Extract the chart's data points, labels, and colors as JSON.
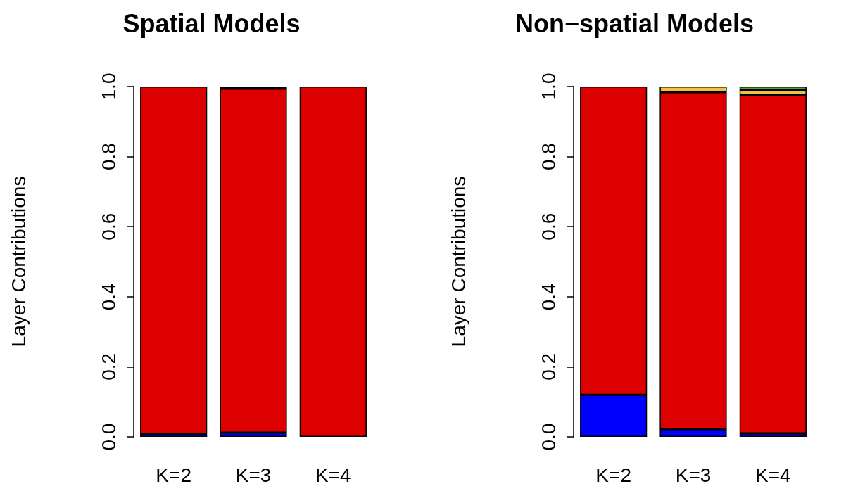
{
  "chart_data": [
    {
      "type": "bar",
      "title": "Spatial Models",
      "ylabel": "Layer Contributions",
      "categories": [
        "K=2",
        "K=3",
        "K=4"
      ],
      "stacked": true,
      "ylim": [
        0,
        1
      ],
      "yticks": [
        {
          "value": 0,
          "label": "0.0"
        },
        {
          "value": 0.2,
          "label": "0.2"
        },
        {
          "value": 0.4,
          "label": "0.4"
        },
        {
          "value": 0.6,
          "label": "0.6"
        },
        {
          "value": 0.8,
          "label": "0.8"
        },
        {
          "value": 1,
          "label": "1.0"
        }
      ],
      "series": [
        {
          "color": "#0000ff",
          "values": [
            0.008,
            0.012,
            null
          ]
        },
        {
          "color": "#dd0000",
          "values": [
            0.992,
            0.982,
            1
          ]
        },
        {
          "color": "#f0c040",
          "values": [
            null,
            0.006,
            null
          ]
        }
      ]
    },
    {
      "type": "bar",
      "title": "Non−spatial Models",
      "ylabel": "Layer Contributions",
      "categories": [
        "K=2",
        "K=3",
        "K=4"
      ],
      "stacked": true,
      "ylim": [
        0,
        1
      ],
      "yticks": [
        {
          "value": 0,
          "label": "0.0"
        },
        {
          "value": 0.2,
          "label": "0.2"
        },
        {
          "value": 0.4,
          "label": "0.4"
        },
        {
          "value": 0.6,
          "label": "0.6"
        },
        {
          "value": 0.8,
          "label": "0.8"
        },
        {
          "value": 1,
          "label": "1.0"
        }
      ],
      "series": [
        {
          "color": "#0000ff",
          "values": [
            0.12,
            0.022,
            0.01
          ]
        },
        {
          "color": "#dd0000",
          "values": [
            0.88,
            0.962,
            0.966
          ]
        },
        {
          "color": "#f0c040",
          "values": [
            null,
            0.016,
            0.014
          ]
        },
        {
          "color": "#5a9a30",
          "values": [
            null,
            null,
            0.01
          ]
        }
      ]
    }
  ]
}
